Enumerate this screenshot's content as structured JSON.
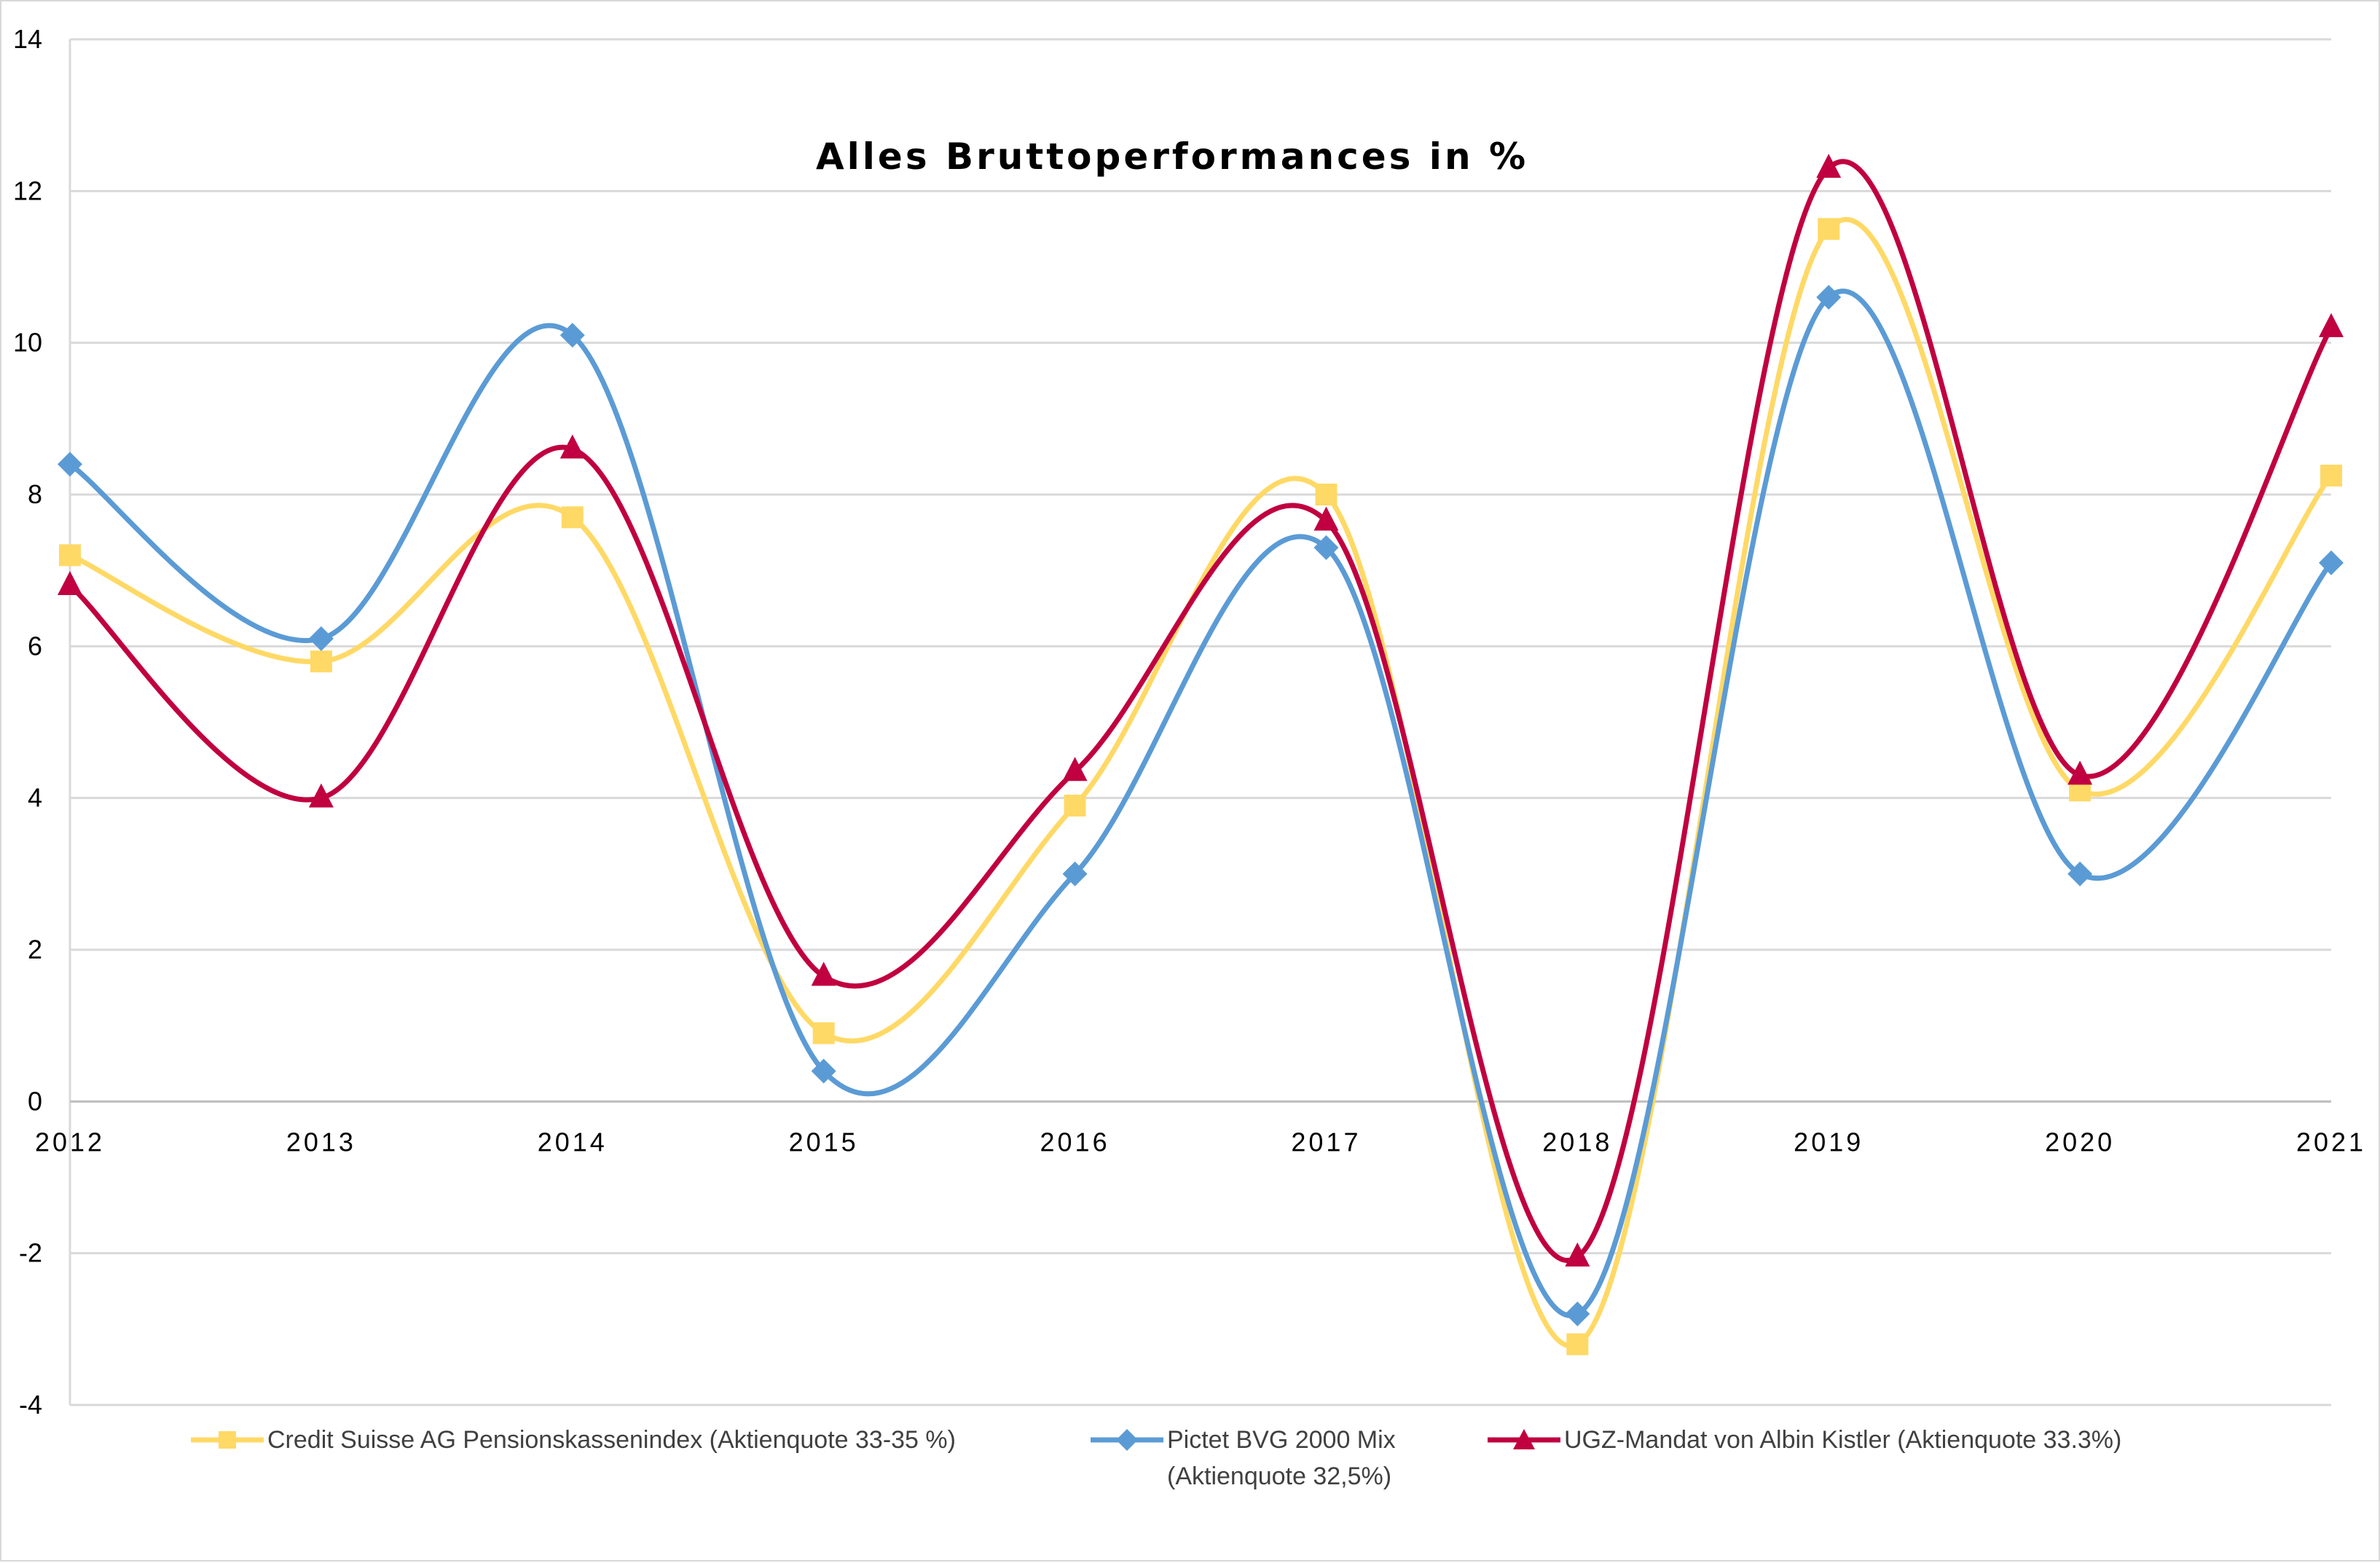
{
  "chart_data": {
    "type": "line",
    "title": "Alles Bruttoperformances in %",
    "xlabel": "",
    "ylabel": "",
    "categories": [
      "2012",
      "2013",
      "2014",
      "2015",
      "2016",
      "2017",
      "2018",
      "2019",
      "2020",
      "2021"
    ],
    "ylim": [
      -4,
      14
    ],
    "yticks": [
      "14",
      "12",
      "10",
      "8",
      "6",
      "4",
      "2",
      "0",
      "-2",
      "-4"
    ],
    "grid": true,
    "smooth": true,
    "legend_position": "bottom",
    "series": [
      {
        "name": "Credit Suisse AG Pensionskassenindex (Aktienquote 33-35 %)",
        "color": "#FFD966",
        "marker": "square",
        "values": [
          7.2,
          5.8,
          7.7,
          0.9,
          3.9,
          8.0,
          -3.2,
          11.5,
          4.1,
          8.25
        ]
      },
      {
        "name": "Pictet BVG 2000 Mix\n(Aktienquote 32,5%)",
        "color": "#5B9BD5",
        "marker": "diamond",
        "values": [
          8.4,
          6.1,
          10.1,
          0.4,
          3.0,
          7.3,
          -2.8,
          10.6,
          3.0,
          7.1
        ]
      },
      {
        "name": "UGZ-Mandat von Albin Kistler (Aktienquote 33.3%)",
        "color": "#C00040",
        "marker": "triangle",
        "values": [
          6.8,
          4.0,
          8.6,
          1.65,
          4.35,
          7.65,
          -2.05,
          12.3,
          4.3,
          10.2
        ]
      }
    ]
  }
}
